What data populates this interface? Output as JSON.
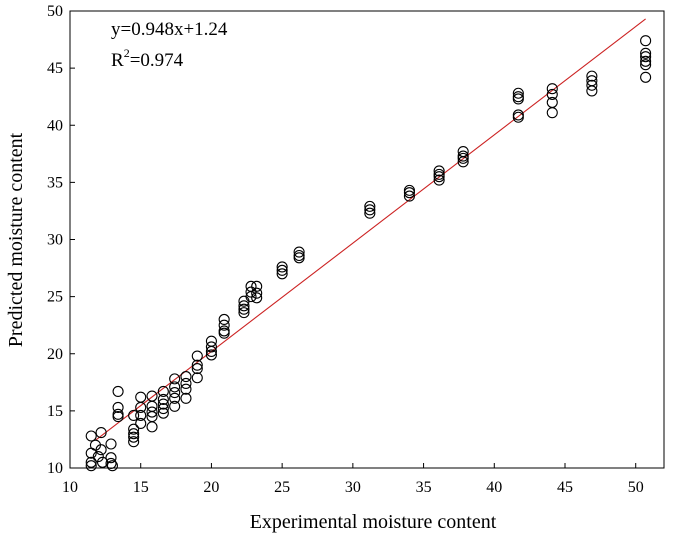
{
  "chart_data": {
    "type": "scatter",
    "xlabel": "Experimental moisture content",
    "ylabel": "Predicted moisture content",
    "xlim": [
      10,
      52
    ],
    "ylim": [
      10,
      50
    ],
    "xticks": [
      10,
      15,
      20,
      25,
      30,
      35,
      40,
      45,
      50
    ],
    "yticks": [
      10,
      15,
      20,
      25,
      30,
      35,
      40,
      45,
      50
    ],
    "xtick_labels": [
      "10",
      "15",
      "20",
      "25",
      "30",
      "35",
      "40",
      "45",
      "50"
    ],
    "ytick_labels": [
      "10",
      "15",
      "20",
      "25",
      "30",
      "35",
      "40",
      "45",
      "50"
    ],
    "grid": false,
    "fit_line": {
      "slope": 0.948,
      "intercept": 1.24,
      "x_range": [
        11.8,
        50.7
      ],
      "color": "#cc2222"
    },
    "annotations": {
      "equation": "y=0.948x+1.24",
      "r2_prefix": "R",
      "r2_superscript": "2",
      "r2_value": "=0.974"
    },
    "points": [
      [
        11.5,
        12.8
      ],
      [
        11.5,
        11.3
      ],
      [
        11.5,
        10.5
      ],
      [
        11.5,
        10.2
      ],
      [
        11.8,
        12.0
      ],
      [
        12.0,
        11.0
      ],
      [
        12.2,
        13.1
      ],
      [
        12.2,
        11.6
      ],
      [
        12.3,
        10.5
      ],
      [
        12.9,
        12.1
      ],
      [
        12.9,
        10.9
      ],
      [
        12.9,
        10.4
      ],
      [
        13.0,
        10.2
      ],
      [
        13.4,
        16.7
      ],
      [
        13.4,
        15.3
      ],
      [
        13.4,
        14.7
      ],
      [
        13.4,
        14.5
      ],
      [
        14.5,
        14.6
      ],
      [
        14.5,
        13.4
      ],
      [
        14.5,
        13.0
      ],
      [
        14.5,
        12.7
      ],
      [
        14.5,
        12.3
      ],
      [
        15.0,
        16.2
      ],
      [
        15.0,
        15.3
      ],
      [
        15.0,
        14.6
      ],
      [
        15.0,
        13.9
      ],
      [
        15.8,
        16.3
      ],
      [
        15.8,
        15.4
      ],
      [
        15.8,
        14.9
      ],
      [
        15.8,
        14.5
      ],
      [
        15.8,
        13.6
      ],
      [
        16.6,
        16.7
      ],
      [
        16.6,
        16.0
      ],
      [
        16.6,
        15.6
      ],
      [
        16.6,
        15.2
      ],
      [
        16.6,
        14.8
      ],
      [
        17.4,
        17.8
      ],
      [
        17.4,
        17.1
      ],
      [
        17.4,
        16.6
      ],
      [
        17.4,
        16.1
      ],
      [
        17.4,
        15.4
      ],
      [
        18.2,
        18.0
      ],
      [
        18.2,
        17.4
      ],
      [
        18.2,
        16.9
      ],
      [
        18.2,
        16.1
      ],
      [
        19.0,
        19.8
      ],
      [
        19.0,
        19.0
      ],
      [
        19.0,
        18.7
      ],
      [
        19.0,
        17.9
      ],
      [
        20.0,
        21.1
      ],
      [
        20.0,
        20.6
      ],
      [
        20.0,
        20.2
      ],
      [
        20.0,
        19.9
      ],
      [
        20.9,
        23.0
      ],
      [
        20.9,
        22.5
      ],
      [
        20.9,
        22.0
      ],
      [
        20.9,
        21.8
      ],
      [
        22.3,
        24.6
      ],
      [
        22.3,
        24.2
      ],
      [
        22.3,
        23.9
      ],
      [
        22.3,
        23.6
      ],
      [
        22.8,
        25.9
      ],
      [
        22.8,
        25.4
      ],
      [
        22.8,
        25.0
      ],
      [
        23.2,
        25.9
      ],
      [
        23.2,
        25.3
      ],
      [
        23.2,
        24.9
      ],
      [
        25.0,
        27.6
      ],
      [
        25.0,
        27.3
      ],
      [
        25.0,
        27.0
      ],
      [
        26.2,
        28.9
      ],
      [
        26.2,
        28.6
      ],
      [
        26.2,
        28.4
      ],
      [
        31.2,
        32.9
      ],
      [
        31.2,
        32.6
      ],
      [
        31.2,
        32.3
      ],
      [
        34.0,
        34.3
      ],
      [
        34.0,
        34.1
      ],
      [
        34.0,
        33.8
      ],
      [
        36.1,
        36.0
      ],
      [
        36.1,
        35.7
      ],
      [
        36.1,
        35.5
      ],
      [
        36.1,
        35.2
      ],
      [
        37.8,
        37.7
      ],
      [
        37.8,
        37.3
      ],
      [
        37.8,
        37.1
      ],
      [
        37.8,
        36.8
      ],
      [
        41.7,
        42.8
      ],
      [
        41.7,
        42.5
      ],
      [
        41.7,
        42.3
      ],
      [
        41.7,
        40.9
      ],
      [
        41.7,
        40.7
      ],
      [
        44.1,
        43.2
      ],
      [
        44.1,
        42.7
      ],
      [
        44.1,
        42.0
      ],
      [
        44.1,
        41.1
      ],
      [
        46.9,
        44.3
      ],
      [
        46.9,
        43.9
      ],
      [
        46.9,
        43.5
      ],
      [
        46.9,
        43.0
      ],
      [
        50.7,
        47.4
      ],
      [
        50.7,
        46.3
      ],
      [
        50.7,
        46.0
      ],
      [
        50.7,
        45.6
      ],
      [
        50.7,
        45.3
      ],
      [
        50.7,
        44.2
      ]
    ]
  }
}
